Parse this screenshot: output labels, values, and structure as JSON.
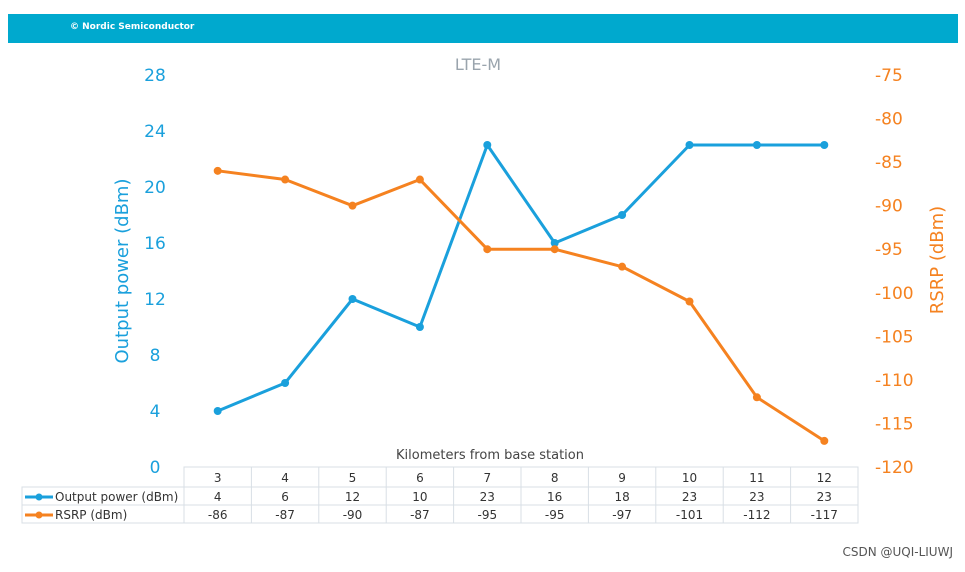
{
  "header": {
    "brand": "© Nordic Semiconductor"
  },
  "watermark": "CSDN @UQI-LIUWJ",
  "chart_data": {
    "type": "line",
    "title": "LTE-M",
    "xlabel": "Kilometers from base station",
    "categories": [
      3,
      4,
      5,
      6,
      7,
      8,
      9,
      10,
      11,
      12
    ],
    "y_left": {
      "label": "Output power (dBm)",
      "ticks": [
        0,
        4,
        8,
        12,
        16,
        20,
        24,
        28
      ],
      "range": [
        0,
        28
      ]
    },
    "y_right": {
      "label": "RSRP (dBm)",
      "ticks": [
        -75,
        -80,
        -85,
        -90,
        -95,
        -100,
        -105,
        -110,
        -115,
        -120
      ],
      "range": [
        -120,
        -75
      ]
    },
    "series": [
      {
        "name": "Output power (dBm)",
        "axis": "left",
        "color": "#1aa0dc",
        "values": [
          4,
          6,
          12,
          10,
          23,
          16,
          18,
          23,
          23,
          23
        ]
      },
      {
        "name": "RSRP (dBm)",
        "axis": "right",
        "color": "#f58220",
        "values": [
          -86,
          -87,
          -90,
          -87,
          -95,
          -95,
          -97,
          -101,
          -112,
          -117
        ]
      }
    ],
    "grid": false,
    "legend": "data-table-below"
  }
}
